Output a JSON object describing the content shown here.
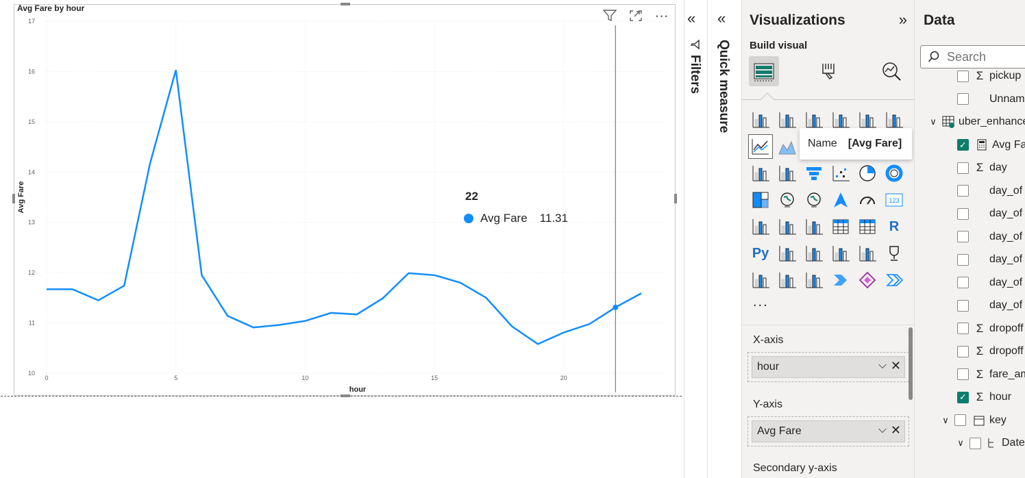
{
  "visual": {
    "title": "Avg Fare by hour",
    "tooltip": {
      "title": "22",
      "series": "Avg Fare",
      "value": "11.31"
    }
  },
  "chart_data": {
    "type": "line",
    "title": "Avg Fare by hour",
    "xlabel": "hour",
    "ylabel": "Avg Fare",
    "x": [
      0,
      1,
      2,
      3,
      4,
      5,
      6,
      7,
      8,
      9,
      10,
      11,
      12,
      13,
      14,
      15,
      16,
      17,
      18,
      19,
      20,
      21,
      22,
      23
    ],
    "series": [
      {
        "name": "Avg Fare",
        "color": "#118dff",
        "values": [
          11.67,
          11.67,
          11.45,
          11.74,
          14.17,
          16.03,
          11.95,
          11.14,
          10.91,
          10.96,
          11.04,
          11.2,
          11.17,
          11.49,
          11.99,
          11.95,
          11.8,
          11.5,
          10.93,
          10.58,
          10.81,
          10.98,
          11.31,
          11.59
        ]
      }
    ],
    "xlim": [
      0,
      23
    ],
    "ylim": [
      10,
      17
    ],
    "xticks": [
      "0",
      "5",
      "10",
      "15",
      "20"
    ],
    "yticks": [
      "10",
      "11",
      "12",
      "13",
      "14",
      "15",
      "16",
      "17"
    ],
    "grid": true,
    "hover_x": 22
  },
  "filters_pane": {
    "label": "Filters"
  },
  "quick_measure": {
    "label": "Quick measure"
  },
  "visualizations": {
    "title": "Visualizations",
    "build_label": "Build visual",
    "more": "...",
    "hover_tooltip": {
      "key": "Name",
      "value": "[Avg Fare]"
    },
    "wells": [
      {
        "label": "X-axis",
        "field": "hour"
      },
      {
        "label": "Y-axis",
        "field": "Avg Fare"
      },
      {
        "label": "Secondary y-axis",
        "field": ""
      }
    ]
  },
  "data_pane": {
    "title": "Data",
    "search_placeholder": "Search",
    "items": [
      {
        "label": "pickup",
        "sigma": true,
        "checked": false
      },
      {
        "label": "Unnamed",
        "sigma": false,
        "checked": false
      },
      {
        "label": "uber_enhanced",
        "table": true
      },
      {
        "label": "Avg Fare",
        "measure": true,
        "checked": true
      },
      {
        "label": "day",
        "sigma": true,
        "checked": false
      },
      {
        "label": "day_of",
        "sigma": false,
        "checked": false
      },
      {
        "label": "day_of",
        "sigma": false,
        "checked": false
      },
      {
        "label": "day_of",
        "sigma": false,
        "checked": false
      },
      {
        "label": "day_of",
        "sigma": false,
        "checked": false
      },
      {
        "label": "day_of",
        "sigma": false,
        "checked": false
      },
      {
        "label": "day_of",
        "sigma": false,
        "checked": false
      },
      {
        "label": "dropoff",
        "sigma": true,
        "checked": false
      },
      {
        "label": "dropoff",
        "sigma": true,
        "checked": false
      },
      {
        "label": "fare_am",
        "sigma": true,
        "checked": false
      },
      {
        "label": "hour",
        "sigma": true,
        "checked": true
      },
      {
        "label": "key",
        "calendar": true,
        "checked": false
      },
      {
        "label": "Date",
        "hierarchy": true,
        "checked": false
      }
    ]
  },
  "colors": {
    "accent": "#118dff",
    "check": "#0e7c6b",
    "pane_bg": "#f3f2f1"
  }
}
